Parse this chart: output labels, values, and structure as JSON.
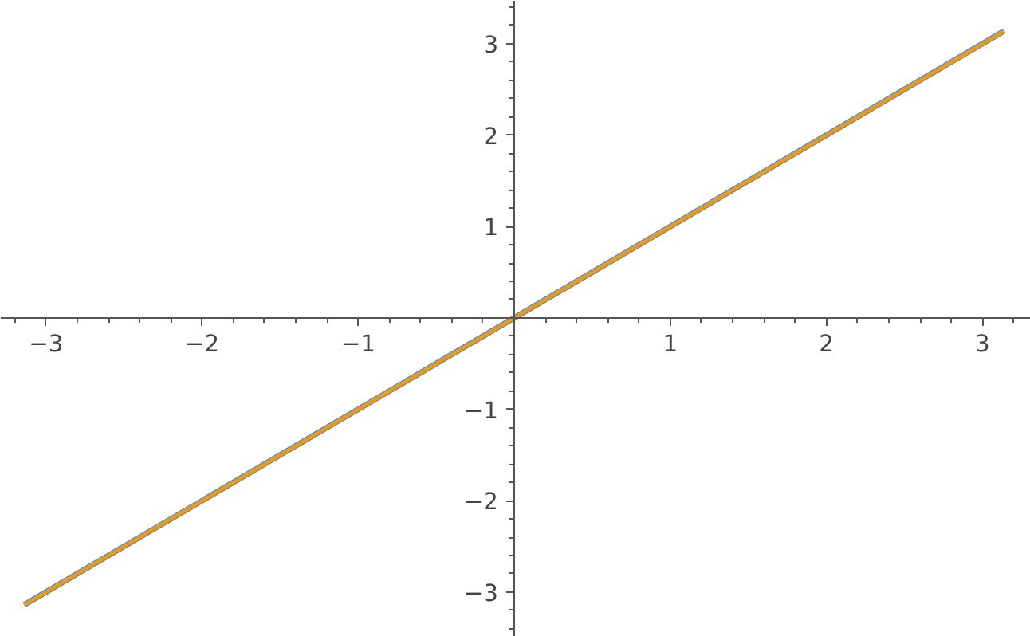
{
  "chart_data": {
    "type": "line",
    "x": [
      -3.14,
      3.14
    ],
    "series": [
      {
        "color": "#5e81b5",
        "values": [
          -3.14,
          3.14
        ]
      },
      {
        "color": "#e19c24",
        "values": [
          -3.14,
          3.14
        ]
      }
    ],
    "xlim": [
      -3.29,
      3.31
    ],
    "ylim": [
      -3.49,
      3.47
    ],
    "xticks": [
      -3,
      -2,
      -1,
      1,
      2,
      3,
      {
        "value": -3.2,
        "label": null
      },
      {
        "value": -2.8,
        "label": null
      },
      {
        "value": -2.6,
        "label": null
      },
      {
        "value": -2.4,
        "label": null
      },
      {
        "value": -2.2,
        "label": null
      },
      {
        "value": -1.8,
        "label": null
      },
      {
        "value": -1.6,
        "label": null
      },
      {
        "value": -1.4,
        "label": null
      },
      {
        "value": -1.2,
        "label": null
      },
      {
        "value": -0.8,
        "label": null
      },
      {
        "value": -0.6,
        "label": null
      },
      {
        "value": -0.4,
        "label": null
      },
      {
        "value": -0.2,
        "label": null
      },
      {
        "value": 0.2,
        "label": null
      },
      {
        "value": 0.4,
        "label": null
      },
      {
        "value": 0.6,
        "label": null
      },
      {
        "value": 0.8,
        "label": null
      },
      {
        "value": 1.2,
        "label": null
      },
      {
        "value": 1.4,
        "label": null
      },
      {
        "value": 1.6,
        "label": null
      },
      {
        "value": 1.8,
        "label": null
      },
      {
        "value": 2.2,
        "label": null
      },
      {
        "value": 2.4,
        "label": null
      },
      {
        "value": 2.6,
        "label": null
      },
      {
        "value": 2.8,
        "label": null
      },
      {
        "value": 3.2,
        "label": null
      }
    ],
    "yticks": [
      -3,
      -2,
      -1,
      1,
      2,
      3,
      {
        "value": -3.4,
        "label": null
      },
      {
        "value": -3.2,
        "label": null
      },
      {
        "value": -2.8,
        "label": null
      },
      {
        "value": -2.6,
        "label": null
      },
      {
        "value": -2.4,
        "label": null
      },
      {
        "value": -2.2,
        "label": null
      },
      {
        "value": -1.8,
        "label": null
      },
      {
        "value": -1.6,
        "label": null
      },
      {
        "value": -1.4,
        "label": null
      },
      {
        "value": -1.2,
        "label": null
      },
      {
        "value": -0.8,
        "label": null
      },
      {
        "value": -0.6,
        "label": null
      },
      {
        "value": -0.4,
        "label": null
      },
      {
        "value": -0.2,
        "label": null
      },
      {
        "value": 0.2,
        "label": null
      },
      {
        "value": 0.4,
        "label": null
      },
      {
        "value": 0.6,
        "label": null
      },
      {
        "value": 0.8,
        "label": null
      },
      {
        "value": 1.2,
        "label": null
      },
      {
        "value": 1.4,
        "label": null
      },
      {
        "value": 1.6,
        "label": null
      },
      {
        "value": 1.8,
        "label": null
      },
      {
        "value": 2.2,
        "label": null
      },
      {
        "value": 2.4,
        "label": null
      },
      {
        "value": 2.6,
        "label": null
      },
      {
        "value": 2.8,
        "label": null
      },
      {
        "value": 3.2,
        "label": null
      },
      {
        "value": 3.4,
        "label": null
      }
    ],
    "grid": false,
    "line_style": "solid"
  }
}
